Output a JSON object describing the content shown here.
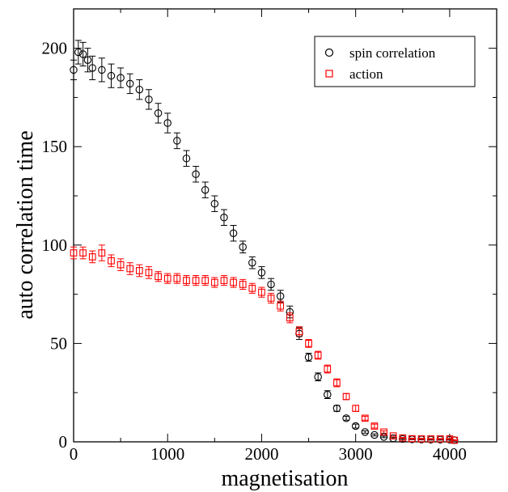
{
  "chart_data": {
    "type": "scatter",
    "title": "",
    "xlabel": "magnetisation",
    "ylabel": "auto correlation time",
    "xlim": [
      0,
      4500
    ],
    "ylim": [
      0,
      220
    ],
    "x_ticks": [
      0,
      1000,
      2000,
      3000,
      4000
    ],
    "y_ticks": [
      0,
      50,
      100,
      150,
      200
    ],
    "grid": false,
    "legend": "top-right",
    "markers": "open, with error bars",
    "series": [
      {
        "name": "spin correlation",
        "color": "#000000",
        "marker": "circle",
        "points": [
          [
            0,
            189,
            5
          ],
          [
            50,
            198,
            6
          ],
          [
            100,
            197,
            6
          ],
          [
            150,
            194,
            6
          ],
          [
            200,
            190,
            6
          ],
          [
            300,
            189,
            6
          ],
          [
            400,
            186,
            6
          ],
          [
            500,
            185,
            5
          ],
          [
            600,
            182,
            5
          ],
          [
            700,
            179,
            5
          ],
          [
            800,
            174,
            5
          ],
          [
            900,
            167,
            5
          ],
          [
            1000,
            162,
            5
          ],
          [
            1100,
            153,
            4
          ],
          [
            1200,
            144,
            4
          ],
          [
            1300,
            136,
            4
          ],
          [
            1400,
            128,
            4
          ],
          [
            1500,
            121,
            4
          ],
          [
            1600,
            114,
            4
          ],
          [
            1700,
            106,
            4
          ],
          [
            1800,
            99,
            3
          ],
          [
            1900,
            91,
            3
          ],
          [
            2000,
            86,
            3
          ],
          [
            2100,
            80,
            3
          ],
          [
            2200,
            74,
            3
          ],
          [
            2300,
            66,
            3
          ],
          [
            2400,
            55,
            3
          ],
          [
            2500,
            43,
            2
          ],
          [
            2600,
            33,
            2
          ],
          [
            2700,
            24,
            2
          ],
          [
            2800,
            17,
            1.5
          ],
          [
            2900,
            12,
            1
          ],
          [
            3000,
            8,
            1
          ],
          [
            3100,
            5,
            0.6
          ],
          [
            3200,
            3.5,
            0.5
          ],
          [
            3300,
            2.5,
            0.4
          ],
          [
            3400,
            1.8,
            0.3
          ],
          [
            3500,
            1.5,
            0.3
          ],
          [
            3600,
            1.3,
            0.2
          ],
          [
            3700,
            1.2,
            0.2
          ],
          [
            3800,
            1.1,
            0.2
          ],
          [
            3900,
            1.1,
            0.2
          ],
          [
            4000,
            1.1,
            0.2
          ],
          [
            4050,
            0.8,
            0.2
          ]
        ]
      },
      {
        "name": "action",
        "color": "#ff0000",
        "marker": "square",
        "points": [
          [
            0,
            96,
            3
          ],
          [
            100,
            96,
            3
          ],
          [
            200,
            94,
            3
          ],
          [
            300,
            96,
            4
          ],
          [
            400,
            92,
            3
          ],
          [
            500,
            90,
            3
          ],
          [
            600,
            88,
            3
          ],
          [
            700,
            87,
            3
          ],
          [
            800,
            86,
            3
          ],
          [
            900,
            84,
            2.5
          ],
          [
            1000,
            83,
            2.5
          ],
          [
            1100,
            83,
            2.5
          ],
          [
            1200,
            82,
            2.5
          ],
          [
            1300,
            82,
            2.5
          ],
          [
            1400,
            82,
            2.5
          ],
          [
            1500,
            81,
            2.5
          ],
          [
            1600,
            82,
            2.5
          ],
          [
            1700,
            81,
            2.5
          ],
          [
            1800,
            80,
            2.5
          ],
          [
            1900,
            78,
            2.5
          ],
          [
            2000,
            76,
            2.5
          ],
          [
            2100,
            73,
            2.5
          ],
          [
            2200,
            69,
            2.5
          ],
          [
            2300,
            63,
            2.5
          ],
          [
            2400,
            56,
            2.5
          ],
          [
            2500,
            50,
            2
          ],
          [
            2600,
            44,
            2
          ],
          [
            2700,
            37,
            2
          ],
          [
            2800,
            30,
            2
          ],
          [
            2900,
            23,
            1.5
          ],
          [
            3000,
            17,
            1.5
          ],
          [
            3100,
            12,
            1
          ],
          [
            3200,
            8,
            1
          ],
          [
            3300,
            5,
            0.6
          ],
          [
            3400,
            3,
            0.5
          ],
          [
            3500,
            2,
            0.3
          ],
          [
            3600,
            1.6,
            0.3
          ],
          [
            3700,
            1.5,
            0.3
          ],
          [
            3800,
            1.5,
            0.2
          ],
          [
            3900,
            1.5,
            0.2
          ],
          [
            4000,
            1.5,
            0.2
          ],
          [
            4050,
            0.8,
            0.2
          ]
        ]
      }
    ]
  }
}
